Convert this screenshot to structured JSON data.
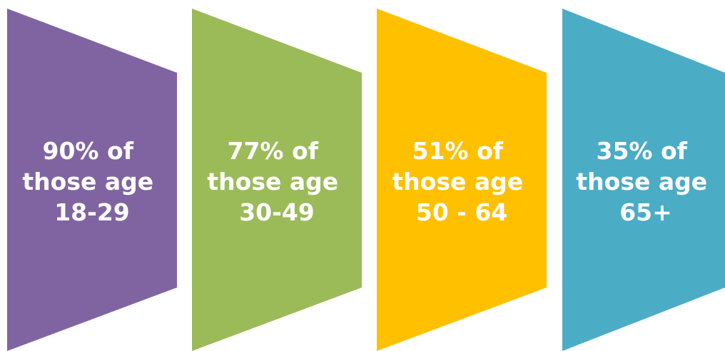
{
  "panels": [
    {
      "color": "#8064a2",
      "lines": [
        "90% of",
        "those age",
        "18-29"
      ]
    },
    {
      "color": "#9bbb59",
      "lines": [
        "77% of",
        "those age",
        "30-49"
      ]
    },
    {
      "color": "#ffc000",
      "lines": [
        "51% of",
        "those age",
        "50 - 64"
      ]
    },
    {
      "color": "#4bacc6",
      "lines": [
        "35% of",
        "those age",
        "65+"
      ]
    }
  ]
}
